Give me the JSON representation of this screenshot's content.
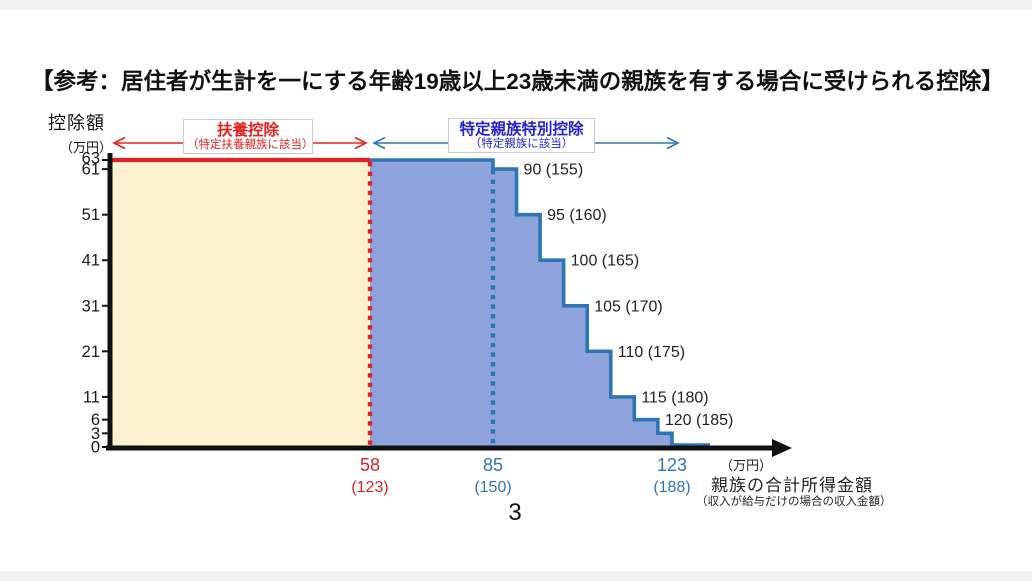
{
  "window": {
    "background": "#f1f1f1",
    "slide_background": "#ffffff"
  },
  "title": "【参考：居住者が生計を一にする年齢19歳以上23歳未満の親族を有する場合に受けられる控除】",
  "page_number": "3",
  "legend": {
    "fuyo": {
      "title": "扶養控除",
      "subtitle": "（特定扶養親族に該当）",
      "color": "#e02222"
    },
    "tokutei": {
      "title": "特定親族特別控除",
      "subtitle": "（特定親族に該当）",
      "color": "#2424cc",
      "arrow_color": "#2e75b6"
    }
  },
  "chart_data": {
    "type": "area-step",
    "y_label": "控除額",
    "y_unit": "（万円）",
    "y_ticks": [
      63,
      61,
      51,
      41,
      31,
      21,
      11,
      6,
      3,
      0
    ],
    "y_max": 63,
    "x_label": "親族の合計所得金額",
    "x_sublabel": "（収入が給与だけの場合の収入金額）",
    "x_unit": "（万円）",
    "x_ticks": [
      {
        "income": "58",
        "salary": "(123)",
        "value": 58,
        "color": "#d02626"
      },
      {
        "income": "85",
        "salary": "(150)",
        "value": 85,
        "color": "#2e75b6"
      },
      {
        "income": "123",
        "salary": "(188)",
        "value": 123,
        "color": "#2e75b6"
      }
    ],
    "segments": [
      {
        "from": 0,
        "to": 58,
        "deduction": 63,
        "region": "扶養控除"
      },
      {
        "from": 58,
        "to": 85,
        "deduction": 63,
        "region": "特定親族特別控除"
      },
      {
        "from": 85,
        "to": 90,
        "deduction": 61,
        "label": "90 (155)"
      },
      {
        "from": 90,
        "to": 95,
        "deduction": 51,
        "label": "95 (160)"
      },
      {
        "from": 95,
        "to": 100,
        "deduction": 41,
        "label": "100 (165)"
      },
      {
        "from": 100,
        "to": 105,
        "deduction": 31,
        "label": "105 (170)"
      },
      {
        "from": 105,
        "to": 110,
        "deduction": 21,
        "label": "110 (175)"
      },
      {
        "from": 110,
        "to": 115,
        "deduction": 11,
        "label": "115 (180)"
      },
      {
        "from": 115,
        "to": 120,
        "deduction": 6,
        "label": "120 (185)"
      },
      {
        "from": 120,
        "to": 123,
        "deduction": 3
      },
      {
        "from": 123,
        "to": 131,
        "deduction": 0
      }
    ],
    "markers": [
      {
        "at": 58,
        "color": "#e02222"
      },
      {
        "at": 85,
        "color": "#2e75b6"
      }
    ],
    "colors": {
      "fuyo_fill": "#fdf2cf",
      "fuyo_line": "#e02222",
      "tokutei_fill": "#8ea3db",
      "tokutei_line": "#2e75b6",
      "axis": "#111111"
    }
  }
}
